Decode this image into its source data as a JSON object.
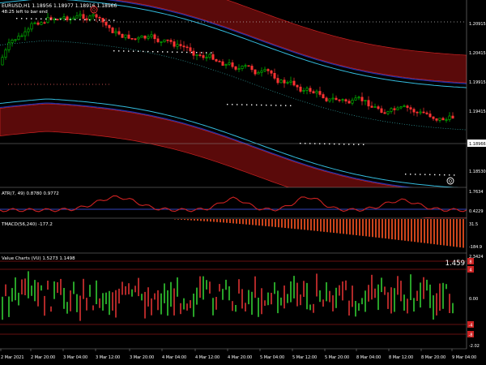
{
  "main": {
    "title": "EURUSD,H1  1.18956 1.18977 1.18916 1.18966",
    "countdown": "48:25 left to bar end",
    "price_labels": [
      "1.20915",
      "1.20415",
      "1.19915",
      "1.19415",
      "1.18530"
    ],
    "current_price": "1.18966",
    "marker_top": "Q",
    "marker_bottom": "Q"
  },
  "atr": {
    "title": "ATR(7, 49) 0.8780 0.9772",
    "levels": [
      "1.7634",
      "0.4229"
    ]
  },
  "tma": {
    "title": "TMACD(56,240) -177.2",
    "levels": [
      "31.5",
      "-184.9"
    ]
  },
  "vc": {
    "title": "Value Charts (VU) 1.5273 1.1498",
    "levels": [
      "2.3424",
      "0.00",
      "-2.02"
    ],
    "current": "1.459",
    "red_markers": [
      "8",
      "4",
      "-4",
      "-8"
    ]
  },
  "time_axis": [
    "2 Mar 2021",
    "2 Mar 20:00",
    "3 Mar 04:00",
    "3 Mar 12:00",
    "3 Mar 20:00",
    "4 Mar 04:00",
    "4 Mar 12:00",
    "4 Mar 20:00",
    "5 Mar 04:00",
    "5 Mar 12:00",
    "5 Mar 20:00",
    "8 Mar 04:00",
    "8 Mar 12:00",
    "8 Mar 20:00",
    "9 Mar 04:00"
  ],
  "colors": {
    "background": "#000000",
    "bull_candle": "#00cc00",
    "bear_candle": "#ff3333",
    "band_fill": "#5a0a0a",
    "band_line": "#cc2222",
    "navy_line": "#2233aa",
    "cyan_line": "#33bbdd",
    "atr_line": "#cc2222",
    "tmacd_bars": "#ff5522",
    "vc_bull": "#33cc33",
    "vc_bear": "#dd3333"
  }
}
